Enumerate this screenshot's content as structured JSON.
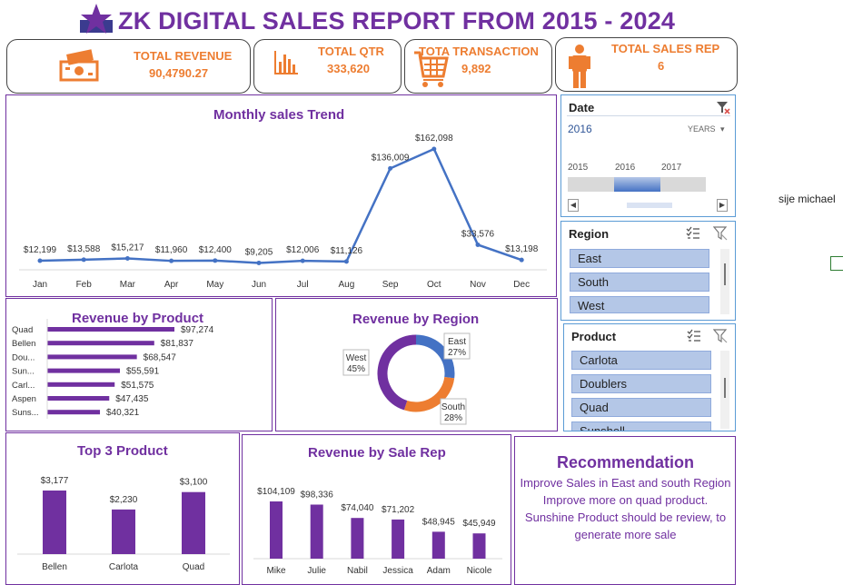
{
  "header": {
    "title": "ZK DIGITAL SALES REPORT FROM 2015 - 2024"
  },
  "kpis": [
    {
      "label": "TOTAL REVENUE",
      "value": "90,4790.27",
      "icon": "money-icon"
    },
    {
      "label": "TOTAL QTR",
      "value": "333,620",
      "icon": "bar-chart-icon"
    },
    {
      "label": "TOTA TRANSACTION",
      "value": "9,892",
      "icon": "cart-icon"
    },
    {
      "label": "TOTAL SALES REP",
      "value": "6",
      "icon": "person-icon"
    }
  ],
  "colors": {
    "accent": "#7030a0",
    "kpi": "#ed7d31",
    "line": "#4472c4",
    "slicer": "#b4c7e7",
    "orange": "#ed7d31"
  },
  "monthly_trend": {
    "title": "Monthly sales Trend",
    "chart_data": {
      "type": "line",
      "categories": [
        "Jan",
        "Feb",
        "Mar",
        "Apr",
        "May",
        "Jun",
        "Jul",
        "Aug",
        "Sep",
        "Oct",
        "Nov",
        "Dec"
      ],
      "values": [
        12199,
        13588,
        15217,
        11960,
        12400,
        9205,
        12006,
        11126,
        136009,
        162098,
        33576,
        13198
      ],
      "labels": [
        "$12,199",
        "$13,588",
        "$15,217",
        "$11,960",
        "$12,400",
        "$9,205",
        "$12,006",
        "$11,126",
        "$136,009",
        "$162,098",
        "$33,576",
        "$13,198"
      ]
    }
  },
  "revenue_by_product": {
    "title": "Revenue by Product",
    "chart_data": {
      "type": "bar",
      "categories": [
        "Quad",
        "Bellen",
        "Dou...",
        "Sun...",
        "Carl...",
        "Aspen",
        "Suns..."
      ],
      "values": [
        97274,
        81837,
        68547,
        55591,
        51575,
        47435,
        40321
      ],
      "labels": [
        "$97,274",
        "$81,837",
        "$68,547",
        "$55,591",
        "$51,575",
        "$47,435",
        "$40,321"
      ]
    }
  },
  "revenue_by_region": {
    "title": "Revenue by Region",
    "chart_data": {
      "type": "pie",
      "categories": [
        "East",
        "South",
        "West"
      ],
      "values": [
        27,
        28,
        45
      ],
      "labels": [
        "27%",
        "28%",
        "45%"
      ],
      "colors": [
        "#4472c4",
        "#ed7d31",
        "#7030a0"
      ]
    }
  },
  "top3": {
    "title": "Top 3 Product",
    "chart_data": {
      "type": "bar",
      "categories": [
        "Bellen",
        "Carlota",
        "Quad"
      ],
      "values": [
        3177,
        2230,
        3100
      ],
      "labels": [
        "$3,177",
        "$2,230",
        "$3,100"
      ]
    }
  },
  "sale_rep": {
    "title": "Revenue by Sale Rep",
    "chart_data": {
      "type": "bar",
      "categories": [
        "Mike",
        "Julie",
        "Nabil",
        "Jessica",
        "Adam",
        "Nicole"
      ],
      "values": [
        104109,
        98336,
        74040,
        71202,
        48945,
        45949
      ],
      "labels": [
        "$104,109",
        "$98,336",
        "$74,040",
        "$71,202",
        "$48,945",
        "$45,949"
      ]
    }
  },
  "date_slicer": {
    "header": "Date",
    "selected": "2016",
    "period": "YEARS",
    "years": [
      "2015",
      "2016",
      "2017"
    ]
  },
  "region_slicer": {
    "header": "Region",
    "items": [
      "East",
      "South",
      "West"
    ]
  },
  "product_slicer": {
    "header": "Product",
    "items": [
      "Carlota",
      "Doublers",
      "Quad",
      "Sunshell"
    ]
  },
  "recommendation": {
    "title": "Recommendation",
    "lines": [
      "Improve Sales in East and south Region",
      "Improve more on quad product.",
      "Sunshine Product should be review, to generate more sale"
    ]
  },
  "side_note": "sije  michael"
}
